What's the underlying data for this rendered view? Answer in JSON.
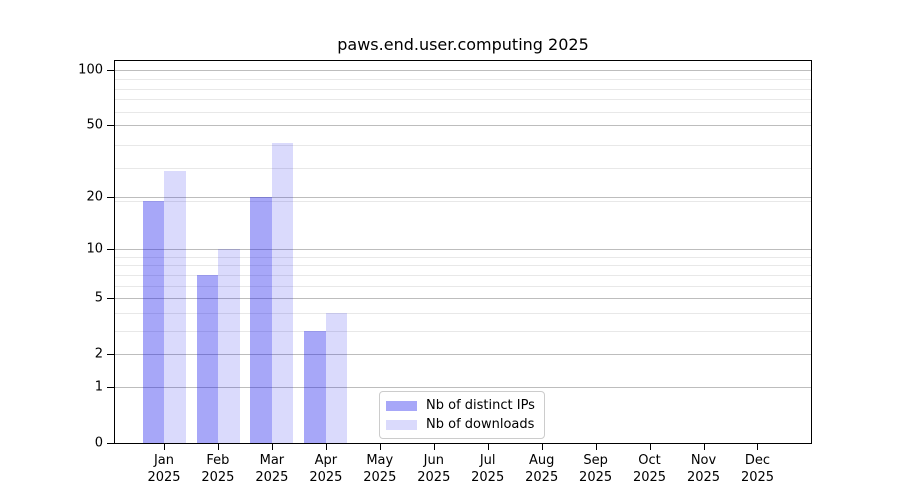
{
  "page": {
    "background": "#ffffff"
  },
  "chart_data": {
    "type": "bar",
    "title": "paws.end.user.computing 2025",
    "categories": [
      "Jan 2025",
      "Feb 2025",
      "Mar 2025",
      "Apr 2025",
      "May 2025",
      "Jun 2025",
      "Jul 2025",
      "Aug 2025",
      "Sep 2025",
      "Oct 2025",
      "Nov 2025",
      "Dec 2025"
    ],
    "series": [
      {
        "name": "Nb of distinct IPs",
        "color": "#a7a7f8",
        "fill": "rgba(10,10,235,0.36)",
        "values": [
          19,
          7,
          20,
          3,
          0,
          0,
          0,
          0,
          0,
          0,
          0,
          0
        ]
      },
      {
        "name": "Nb of downloads",
        "color": "#dadafc",
        "fill": "rgba(10,10,235,0.15)",
        "values": [
          28,
          10,
          40,
          4,
          0,
          0,
          0,
          0,
          0,
          0,
          0,
          0
        ]
      }
    ],
    "xlabel": "",
    "ylabel": "",
    "yscale": "log1p",
    "ylim": [
      0,
      113
    ],
    "yticks": [
      0,
      1,
      2,
      5,
      10,
      20,
      50,
      100
    ],
    "yticks_minor": [
      3,
      4,
      6,
      7,
      8,
      9,
      19,
      29,
      39,
      59,
      69,
      79,
      89
    ],
    "grid": "both",
    "legend_position": "lower-left-of-center"
  },
  "colors": {
    "major_grid": "#bdbdbd",
    "minor_grid": "#e8e8e8",
    "spine": "#000000",
    "text": "#000000"
  }
}
